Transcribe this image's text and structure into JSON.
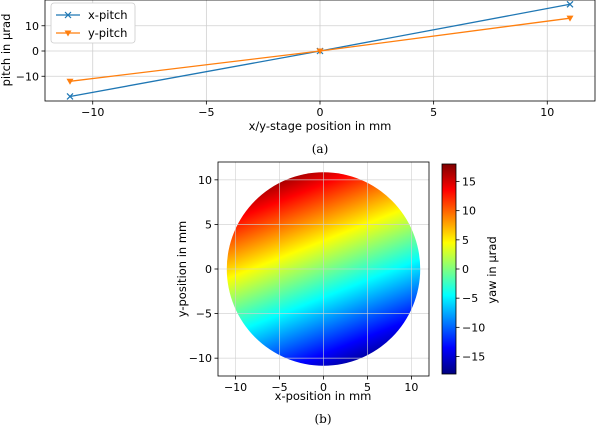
{
  "chart_data": [
    {
      "type": "line",
      "caption": "(a)",
      "xlabel": "x/y-stage position in mm",
      "ylabel": "pitch in µrad",
      "xlim": [
        -12.1,
        12.1
      ],
      "ylim": [
        -19.8,
        20.2
      ],
      "xticks": [
        -10,
        -5,
        0,
        5,
        10
      ],
      "yticks": [
        -10,
        0,
        10
      ],
      "xtick_labels": [
        "−10",
        "−5",
        "0",
        "5",
        "10"
      ],
      "ytick_labels": [
        "−10",
        "0",
        "10"
      ],
      "grid": true,
      "legend": "top-left",
      "series": [
        {
          "name": "x-pitch",
          "color": "#1f77b4",
          "marker": "x",
          "x": [
            -11,
            0,
            11
          ],
          "y": [
            -18,
            0,
            18.5
          ]
        },
        {
          "name": "y-pitch",
          "color": "#ff7f0e",
          "marker": "triangle-down",
          "x": [
            -11,
            0,
            11
          ],
          "y": [
            -12,
            0,
            13
          ]
        }
      ]
    },
    {
      "type": "heatmap",
      "caption": "(b)",
      "xlabel": "x-position in mm",
      "ylabel": "y-position in mm",
      "xlim": [
        -12,
        12
      ],
      "ylim": [
        -12,
        12
      ],
      "xticks": [
        -10,
        -5,
        0,
        5,
        10
      ],
      "yticks": [
        -10,
        -5,
        0,
        5,
        10
      ],
      "xtick_labels": [
        "−10",
        "−5",
        "0",
        "5",
        "10"
      ],
      "ytick_labels": [
        "−10",
        "−5",
        "0",
        "5",
        "10"
      ],
      "grid": true,
      "colormap": "jet",
      "colorbar_label": "yaw in µrad",
      "colorbar_range": [
        -18,
        18
      ],
      "colorbar_ticks": [
        15,
        10,
        5,
        0,
        -5,
        -10,
        -15
      ],
      "colorbar_tick_labels": [
        "15",
        "10",
        "5",
        "0",
        "−5",
        "−10",
        "−15"
      ],
      "disk_radius": 11,
      "yaw_at_top": 18,
      "yaw_at_bottom": -18,
      "gradient_tilt_x_fraction": 0.4
    }
  ]
}
